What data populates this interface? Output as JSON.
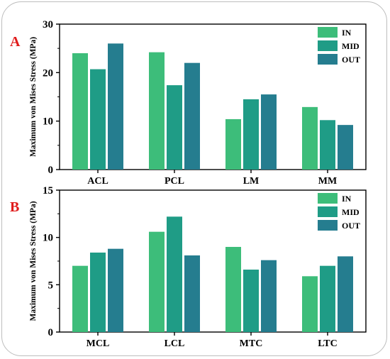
{
  "chart_data": [
    {
      "type": "bar",
      "panel_label": "A",
      "categories": [
        "ACL",
        "PCL",
        "LM",
        "MM"
      ],
      "series": [
        {
          "name": "IN",
          "color": "#3dbd7a",
          "values": [
            24.0,
            24.2,
            10.4,
            12.9
          ]
        },
        {
          "name": "MID",
          "color": "#1f9c86",
          "values": [
            20.7,
            17.4,
            14.5,
            10.2
          ]
        },
        {
          "name": "OUT",
          "color": "#257d8f",
          "values": [
            26.0,
            22.0,
            15.5,
            9.2
          ]
        }
      ],
      "ylabel": "Maximum von Mises Stress (MPa)",
      "xlabel": "",
      "ylim": [
        0,
        30
      ],
      "yticks": [
        0,
        10,
        20,
        30
      ],
      "legend": "top-right",
      "grid": false
    },
    {
      "type": "bar",
      "panel_label": "B",
      "categories": [
        "MCL",
        "LCL",
        "MTC",
        "LTC"
      ],
      "series": [
        {
          "name": "IN",
          "color": "#3dbd7a",
          "values": [
            7.0,
            10.6,
            9.0,
            5.9
          ]
        },
        {
          "name": "MID",
          "color": "#1f9c86",
          "values": [
            8.4,
            12.2,
            6.6,
            7.0
          ]
        },
        {
          "name": "OUT",
          "color": "#257d8f",
          "values": [
            8.8,
            8.1,
            7.6,
            8.0
          ]
        }
      ],
      "ylabel": "Maximum von Mises Stress (MPa)",
      "xlabel": "",
      "ylim": [
        0,
        15
      ],
      "yticks": [
        0,
        5,
        10,
        15
      ],
      "legend": "top-right",
      "grid": false
    }
  ]
}
